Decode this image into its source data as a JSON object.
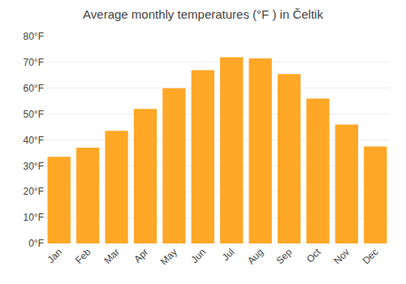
{
  "chart_data": {
    "type": "bar",
    "title": "Average monthly temperatures (°F ) in Čeltik",
    "categories": [
      "Jan",
      "Feb",
      "Mar",
      "Apr",
      "May",
      "Jun",
      "Jul",
      "Aug",
      "Sep",
      "Oct",
      "Nov",
      "Dec"
    ],
    "values": [
      33.5,
      37.0,
      43.5,
      52.0,
      60.0,
      67.0,
      72.0,
      71.5,
      65.5,
      56.0,
      46.0,
      37.5
    ],
    "color": "#FFA726",
    "ylim": [
      0,
      80
    ],
    "yticks": [
      {
        "value": 0,
        "label": "0°F"
      },
      {
        "value": 10,
        "label": "10°F"
      },
      {
        "value": 20,
        "label": "20°F"
      },
      {
        "value": 30,
        "label": "30°F"
      },
      {
        "value": 40,
        "label": "40°F"
      },
      {
        "value": 50,
        "label": "50°F"
      },
      {
        "value": 60,
        "label": "60°F"
      },
      {
        "value": 70,
        "label": "70°F"
      },
      {
        "value": 80,
        "label": "80°F"
      }
    ],
    "grid": true
  }
}
